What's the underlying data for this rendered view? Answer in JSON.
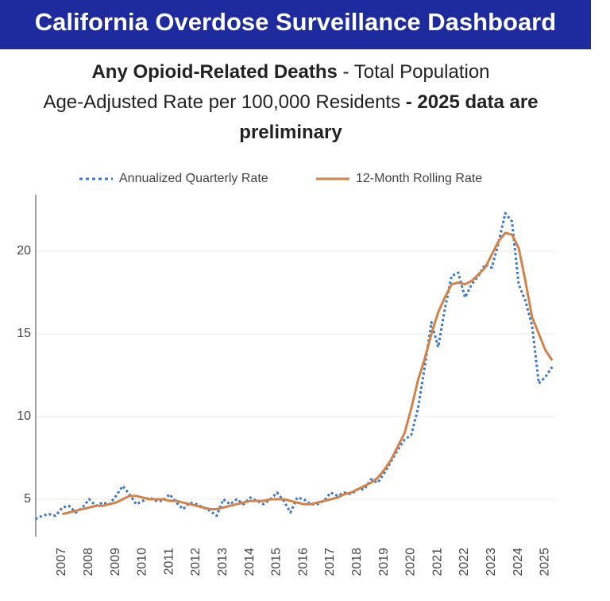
{
  "header": {
    "title": "California Overdose Surveillance Dashboard"
  },
  "chart_data": {
    "type": "line",
    "title": [
      "Any Opioid-Related Deaths",
      "- Total Population",
      "Age-Adjusted Rate per 100,000 Residents",
      "- 2025 data are preliminary"
    ],
    "x": [
      2006.25,
      2006.5,
      2006.75,
      2007,
      2007.25,
      2007.5,
      2007.75,
      2008,
      2008.25,
      2008.5,
      2008.75,
      2009,
      2009.25,
      2009.5,
      2009.75,
      2010,
      2010.25,
      2010.5,
      2010.75,
      2011,
      2011.25,
      2011.5,
      2011.75,
      2012,
      2012.25,
      2012.5,
      2012.75,
      2013,
      2013.25,
      2013.5,
      2013.75,
      2014,
      2014.25,
      2014.5,
      2014.75,
      2015,
      2015.25,
      2015.5,
      2015.75,
      2016,
      2016.25,
      2016.5,
      2016.75,
      2017,
      2017.25,
      2017.5,
      2017.75,
      2018,
      2018.25,
      2018.5,
      2018.75,
      2019,
      2019.25,
      2019.5,
      2019.75,
      2020,
      2020.25,
      2020.5,
      2020.75,
      2021,
      2021.25,
      2021.5,
      2021.75,
      2022,
      2022.25,
      2022.5,
      2022.75,
      2023,
      2023.25,
      2023.5,
      2023.75,
      2024,
      2024.25,
      2024.5,
      2024.75,
      2025,
      2025.25,
      2025.5
    ],
    "series": [
      {
        "name": "Annualized Quarterly Rate",
        "color": "#3b78c8",
        "dashed": true,
        "values": [
          3.8,
          4.0,
          4.1,
          4.0,
          4.5,
          4.6,
          4.2,
          4.5,
          5.0,
          4.6,
          4.8,
          4.7,
          5.2,
          5.8,
          5.3,
          4.7,
          4.9,
          5.1,
          4.9,
          4.9,
          5.3,
          4.8,
          4.4,
          4.8,
          4.7,
          4.5,
          4.3,
          4.0,
          5.0,
          4.7,
          5.0,
          4.7,
          5.1,
          4.9,
          4.7,
          5.0,
          5.4,
          4.9,
          4.2,
          5.1,
          5.0,
          4.7,
          4.7,
          4.9,
          5.4,
          5.2,
          5.4,
          5.3,
          5.6,
          5.6,
          6.2,
          6.0,
          6.6,
          7.3,
          8.0,
          8.6,
          8.9,
          10.5,
          13.0,
          15.7,
          14.2,
          16.5,
          18.5,
          18.7,
          17.2,
          18.0,
          18.5,
          19.2,
          19.0,
          20.5,
          22.3,
          21.8,
          18.0,
          17.0,
          15.5,
          12.0,
          12.4,
          13.0
        ]
      },
      {
        "name": "12-Month Rolling Rate",
        "color": "#d2834a",
        "dashed": false,
        "values": [
          null,
          null,
          null,
          null,
          4.1,
          4.2,
          4.3,
          4.4,
          4.5,
          4.6,
          4.6,
          4.7,
          4.8,
          5.0,
          5.2,
          5.2,
          5.1,
          5.0,
          5.0,
          5.0,
          4.9,
          4.9,
          4.8,
          4.7,
          4.6,
          4.5,
          4.4,
          4.4,
          4.5,
          4.6,
          4.7,
          4.8,
          4.9,
          4.9,
          4.9,
          5.0,
          5.0,
          5.0,
          4.9,
          4.8,
          4.7,
          4.7,
          4.8,
          4.9,
          5.0,
          5.1,
          5.3,
          5.4,
          5.6,
          5.8,
          6.0,
          6.3,
          6.8,
          7.4,
          8.2,
          9.0,
          10.5,
          12.2,
          13.5,
          15.0,
          16.3,
          17.2,
          18.0,
          18.1,
          18.0,
          18.2,
          18.6,
          19.0,
          19.8,
          20.6,
          21.1,
          21.0,
          20.2,
          18.2,
          16.0,
          15.0,
          14.0,
          13.4
        ]
      }
    ],
    "xlim": [
      2006.26,
      2025.64
    ],
    "xticks": [
      2007,
      2008,
      2009,
      2010,
      2011,
      2012,
      2013,
      2014,
      2015,
      2016,
      2017,
      2018,
      2019,
      2020,
      2021,
      2022,
      2023,
      2024,
      2025
    ],
    "ylim": [
      2.74,
      23.41
    ],
    "yticks": [
      5,
      10,
      15,
      20
    ],
    "grid": true
  }
}
